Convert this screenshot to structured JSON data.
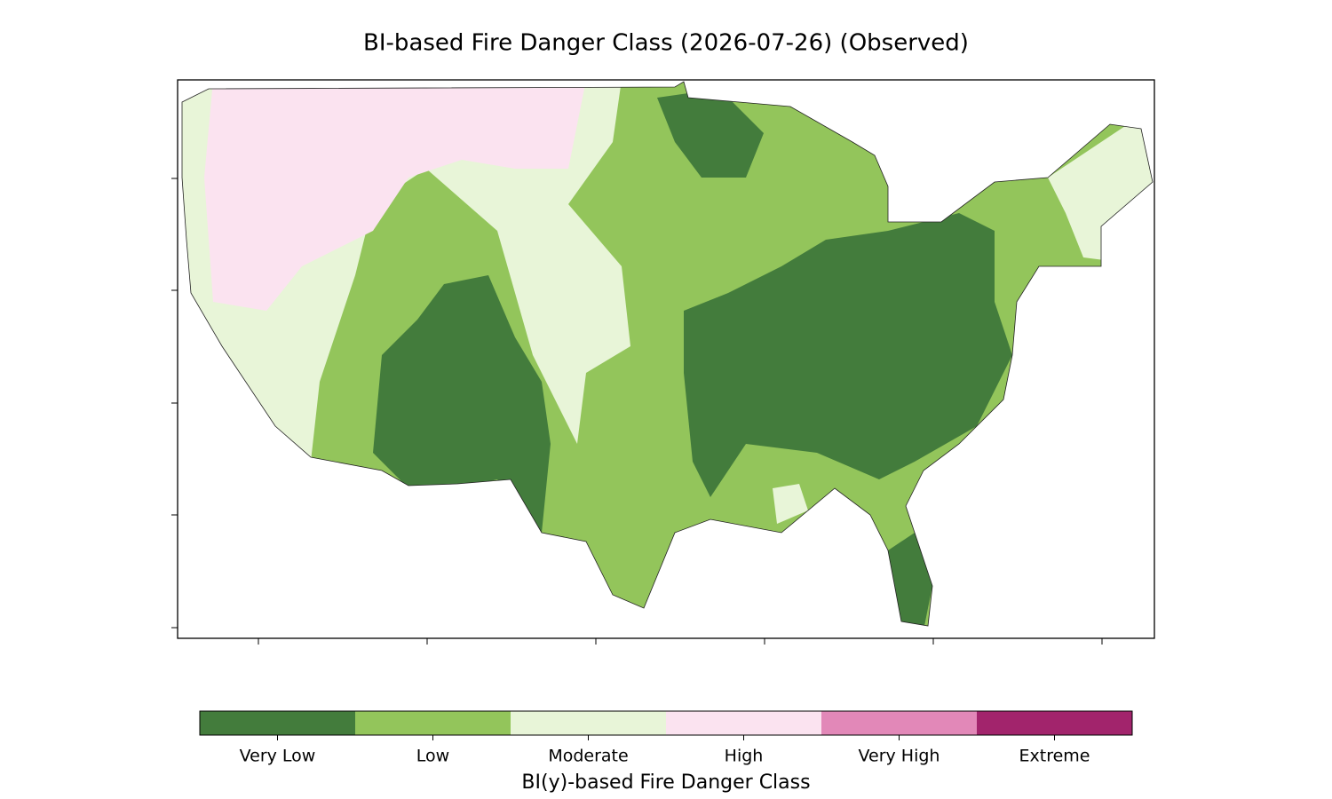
{
  "title": "BI-based Fire Danger Class (2026-07-26) (Observed)",
  "colorbar": {
    "label": "BI(y)-based Fire Danger Class",
    "classes": [
      {
        "name": "Very Low",
        "color": "#437c3c"
      },
      {
        "name": "Low",
        "color": "#93c55b"
      },
      {
        "name": "Moderate",
        "color": "#e8f5d8"
      },
      {
        "name": "High",
        "color": "#fbe3f0"
      },
      {
        "name": "Very High",
        "color": "#e288b8"
      },
      {
        "name": "Extreme",
        "color": "#a2246c"
      }
    ]
  }
}
